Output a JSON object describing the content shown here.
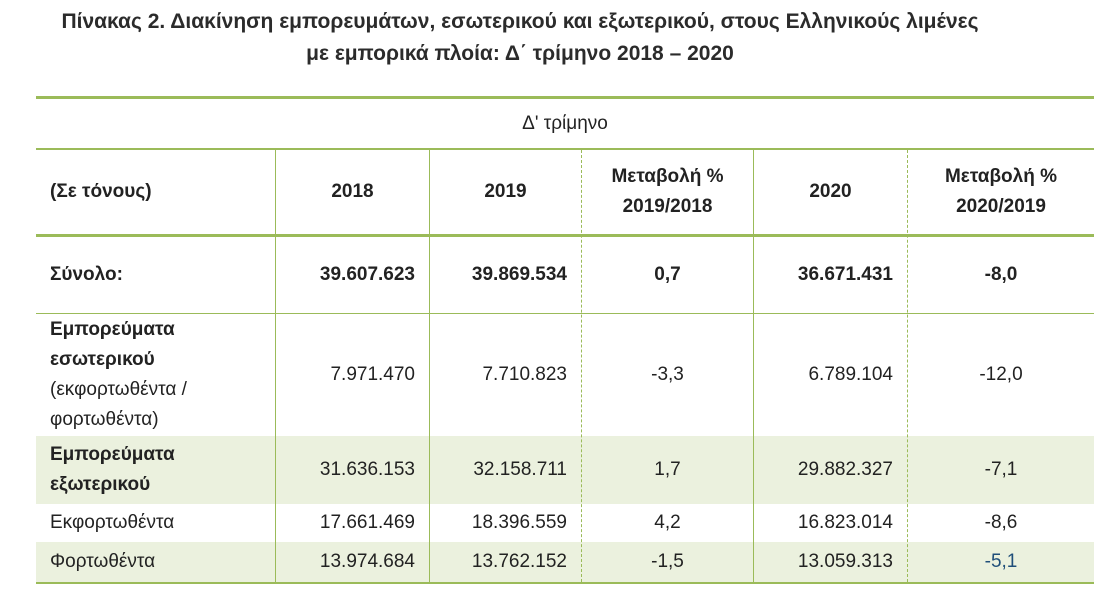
{
  "title": {
    "line1": "Πίνακας 2. Διακίνηση εμπορευμάτων, εσωτερικού και εξωτερικού, στους Ελληνικούς λιμένες",
    "line2": "με εμπορικά πλοία: Δ΄ τρίμηνο 2018 – 2020"
  },
  "table": {
    "period_header": "Δ' τρίμηνο",
    "unit_label": "(Σε τόνους)",
    "col_2018": "2018",
    "col_2019": "2019",
    "col_change1_line1": "Μεταβολή %",
    "col_change1_line2": "2019/2018",
    "col_2020": "2020",
    "col_change2_line1": "Μεταβολή %",
    "col_change2_line2": "2020/2019",
    "rows": [
      {
        "label": "Σύνολο:",
        "v2018": "39.607.623",
        "v2019": "39.869.534",
        "ch1": "0,7",
        "v2020": "36.671.431",
        "ch2": "-8,0"
      },
      {
        "label_line1": "Εμπορεύματα",
        "label_line2": "εσωτερικού",
        "label_line3": "(εκφορτωθέντα /",
        "label_line4": "φορτωθέντα)",
        "v2018": "7.971.470",
        "v2019": "7.710.823",
        "ch1": "-3,3",
        "v2020": "6.789.104",
        "ch2": "-12,0"
      },
      {
        "label_line1": "Εμπορεύματα",
        "label_line2": "εξωτερικού",
        "v2018": "31.636.153",
        "v2019": "32.158.711",
        "ch1": "1,7",
        "v2020": "29.882.327",
        "ch2": "-7,1"
      },
      {
        "label": "Εκφορτωθέντα",
        "v2018": "17.661.469",
        "v2019": "18.396.559",
        "ch1": "4,2",
        "v2020": "16.823.014",
        "ch2": "-8,6"
      },
      {
        "label": "Φορτωθέντα",
        "v2018": "13.974.684",
        "v2019": "13.762.152",
        "ch1": "-1,5",
        "v2020": "13.059.313",
        "ch2": "-5,1"
      }
    ]
  },
  "colors": {
    "rule": "#9bbb59",
    "band": "#ebf1de",
    "highlight_value": "#1f4e79"
  }
}
